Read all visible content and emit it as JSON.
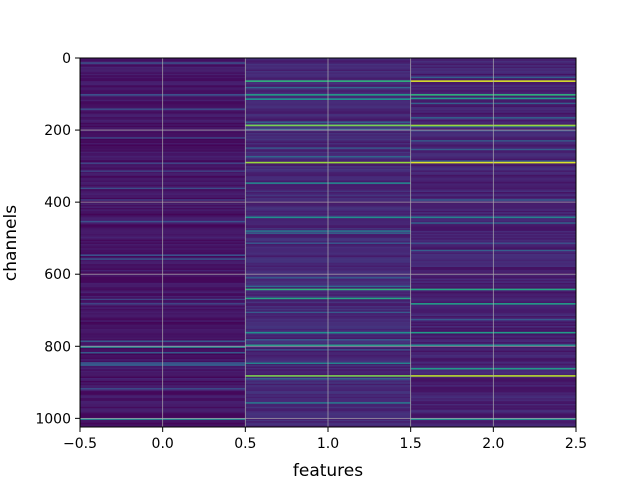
{
  "chart_data": {
    "type": "heatmap",
    "xlabel": "features",
    "ylabel": "channels",
    "xlim": [
      -0.5,
      2.5
    ],
    "ylim": [
      1024,
      0
    ],
    "x_ticks": [
      {
        "value": -0.5,
        "label": "−0.5"
      },
      {
        "value": 0.0,
        "label": "0.0"
      },
      {
        "value": 0.5,
        "label": "0.5"
      },
      {
        "value": 1.0,
        "label": "1.0"
      },
      {
        "value": 1.5,
        "label": "1.5"
      },
      {
        "value": 2.0,
        "label": "2.0"
      },
      {
        "value": 2.5,
        "label": "2.5"
      }
    ],
    "y_ticks": [
      {
        "value": 0,
        "label": "0"
      },
      {
        "value": 200,
        "label": "200"
      },
      {
        "value": 400,
        "label": "400"
      },
      {
        "value": 600,
        "label": "600"
      },
      {
        "value": 800,
        "label": "800"
      },
      {
        "value": 1000,
        "label": "1000"
      }
    ],
    "grid": true,
    "colormap": "viridis",
    "columns": [
      {
        "feature": 0,
        "base_level": 0.06,
        "highlights": [
          {
            "channel": 100,
            "level": 0.25
          },
          {
            "channel": 290,
            "level": 0.2
          },
          {
            "channel": 545,
            "level": 0.25
          },
          {
            "channel": 800,
            "level": 0.45
          },
          {
            "channel": 850,
            "level": 0.3
          },
          {
            "channel": 1000,
            "level": 0.45
          }
        ]
      },
      {
        "feature": 1,
        "base_level": 0.12,
        "highlights": [
          {
            "channel": 62,
            "level": 0.65
          },
          {
            "channel": 100,
            "level": 0.55
          },
          {
            "channel": 112,
            "level": 0.5
          },
          {
            "channel": 185,
            "level": 0.8
          },
          {
            "channel": 288,
            "level": 0.85
          },
          {
            "channel": 345,
            "level": 0.45
          },
          {
            "channel": 440,
            "level": 0.5
          },
          {
            "channel": 478,
            "level": 0.4
          },
          {
            "channel": 640,
            "level": 0.65
          },
          {
            "channel": 665,
            "level": 0.6
          },
          {
            "channel": 760,
            "level": 0.5
          },
          {
            "channel": 795,
            "level": 0.55
          },
          {
            "channel": 845,
            "level": 0.45
          },
          {
            "channel": 880,
            "level": 0.8
          },
          {
            "channel": 955,
            "level": 0.4
          }
        ]
      },
      {
        "feature": 2,
        "base_level": 0.1,
        "highlights": [
          {
            "channel": 62,
            "level": 0.95
          },
          {
            "channel": 100,
            "level": 0.65
          },
          {
            "channel": 110,
            "level": 0.55
          },
          {
            "channel": 185,
            "level": 0.85
          },
          {
            "channel": 288,
            "level": 0.95
          },
          {
            "channel": 440,
            "level": 0.45
          },
          {
            "channel": 640,
            "level": 0.6
          },
          {
            "channel": 680,
            "level": 0.55
          },
          {
            "channel": 760,
            "level": 0.55
          },
          {
            "channel": 795,
            "level": 0.5
          },
          {
            "channel": 860,
            "level": 0.55
          },
          {
            "channel": 880,
            "level": 0.9
          },
          {
            "channel": 1000,
            "level": 0.5
          }
        ]
      }
    ]
  }
}
